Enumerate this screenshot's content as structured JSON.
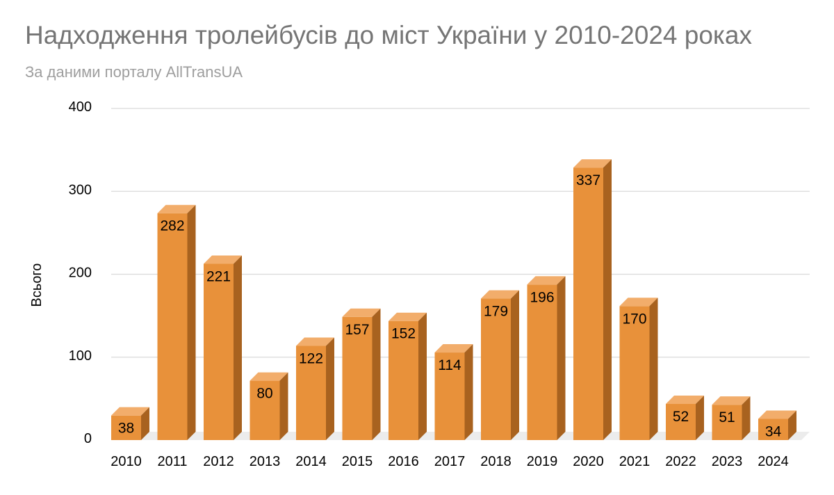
{
  "chart_data": {
    "type": "bar",
    "title": "Надходження тролейбусів до міст України у 2010-2024 роках",
    "subtitle": "За даними порталу AllTransUA",
    "ylabel": "Всього",
    "xlabel": "",
    "ylim": [
      0,
      400
    ],
    "yticks": [
      0,
      100,
      200,
      300,
      400
    ],
    "grid": true,
    "legend": "none",
    "style": "3d-column",
    "categories": [
      "2010",
      "2011",
      "2012",
      "2013",
      "2014",
      "2015",
      "2016",
      "2017",
      "2018",
      "2019",
      "2020",
      "2021",
      "2022",
      "2023",
      "2024"
    ],
    "values": [
      38,
      282,
      221,
      80,
      122,
      157,
      152,
      114,
      179,
      196,
      337,
      170,
      52,
      51,
      34
    ],
    "colors": {
      "bar_front": "#e8913a",
      "bar_top": "#f2ad6b",
      "bar_side": "#a8621f",
      "gridline": "#d9d9d9",
      "floor": "#ececec"
    }
  }
}
